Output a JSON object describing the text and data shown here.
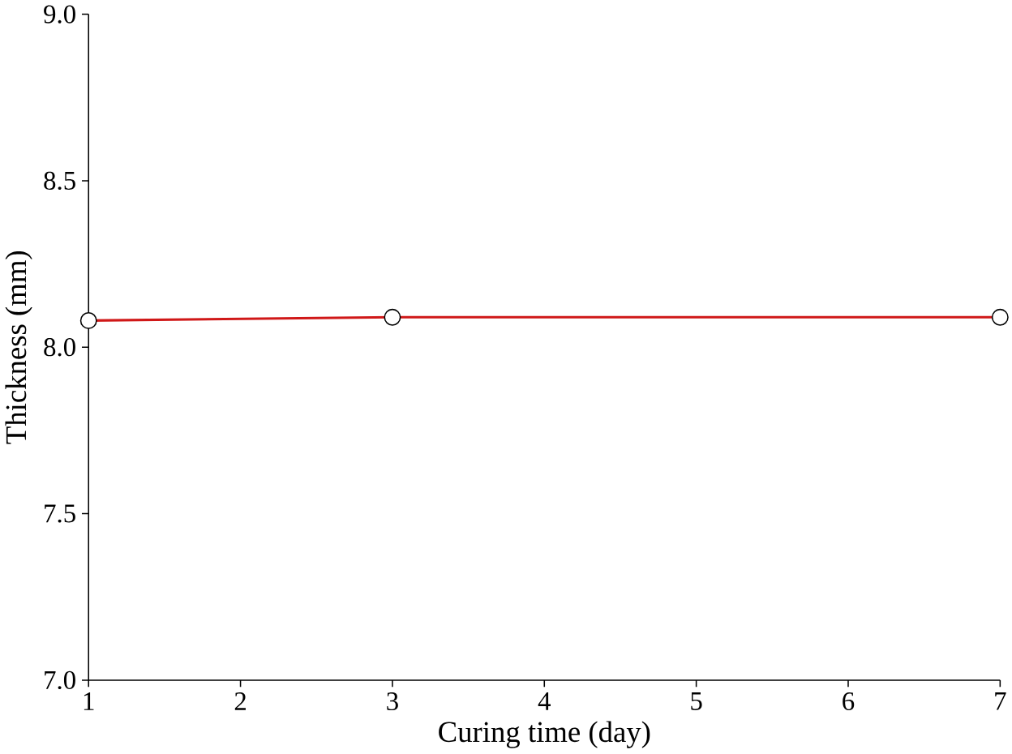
{
  "chart_data": {
    "type": "line",
    "xlabel": "Curing time (day)",
    "ylabel": "Thickness (mm)",
    "x": [
      1,
      3,
      7
    ],
    "series": [
      {
        "color": "#d01818",
        "values": [
          8.08,
          8.09,
          8.09
        ]
      }
    ],
    "xlim": [
      1,
      7
    ],
    "xticks": [
      1,
      2,
      3,
      4,
      5,
      6,
      7
    ],
    "ylim": [
      7.0,
      9.0
    ],
    "yticks": [
      {
        "value": 7.0,
        "label": "7.0"
      },
      {
        "value": 7.5,
        "label": "7.5"
      },
      {
        "value": 8.0,
        "label": "8.0"
      },
      {
        "value": 8.5,
        "label": "8.5"
      },
      {
        "value": 9.0,
        "label": "9.0"
      }
    ],
    "marker": "circle",
    "line_style": "solid"
  }
}
